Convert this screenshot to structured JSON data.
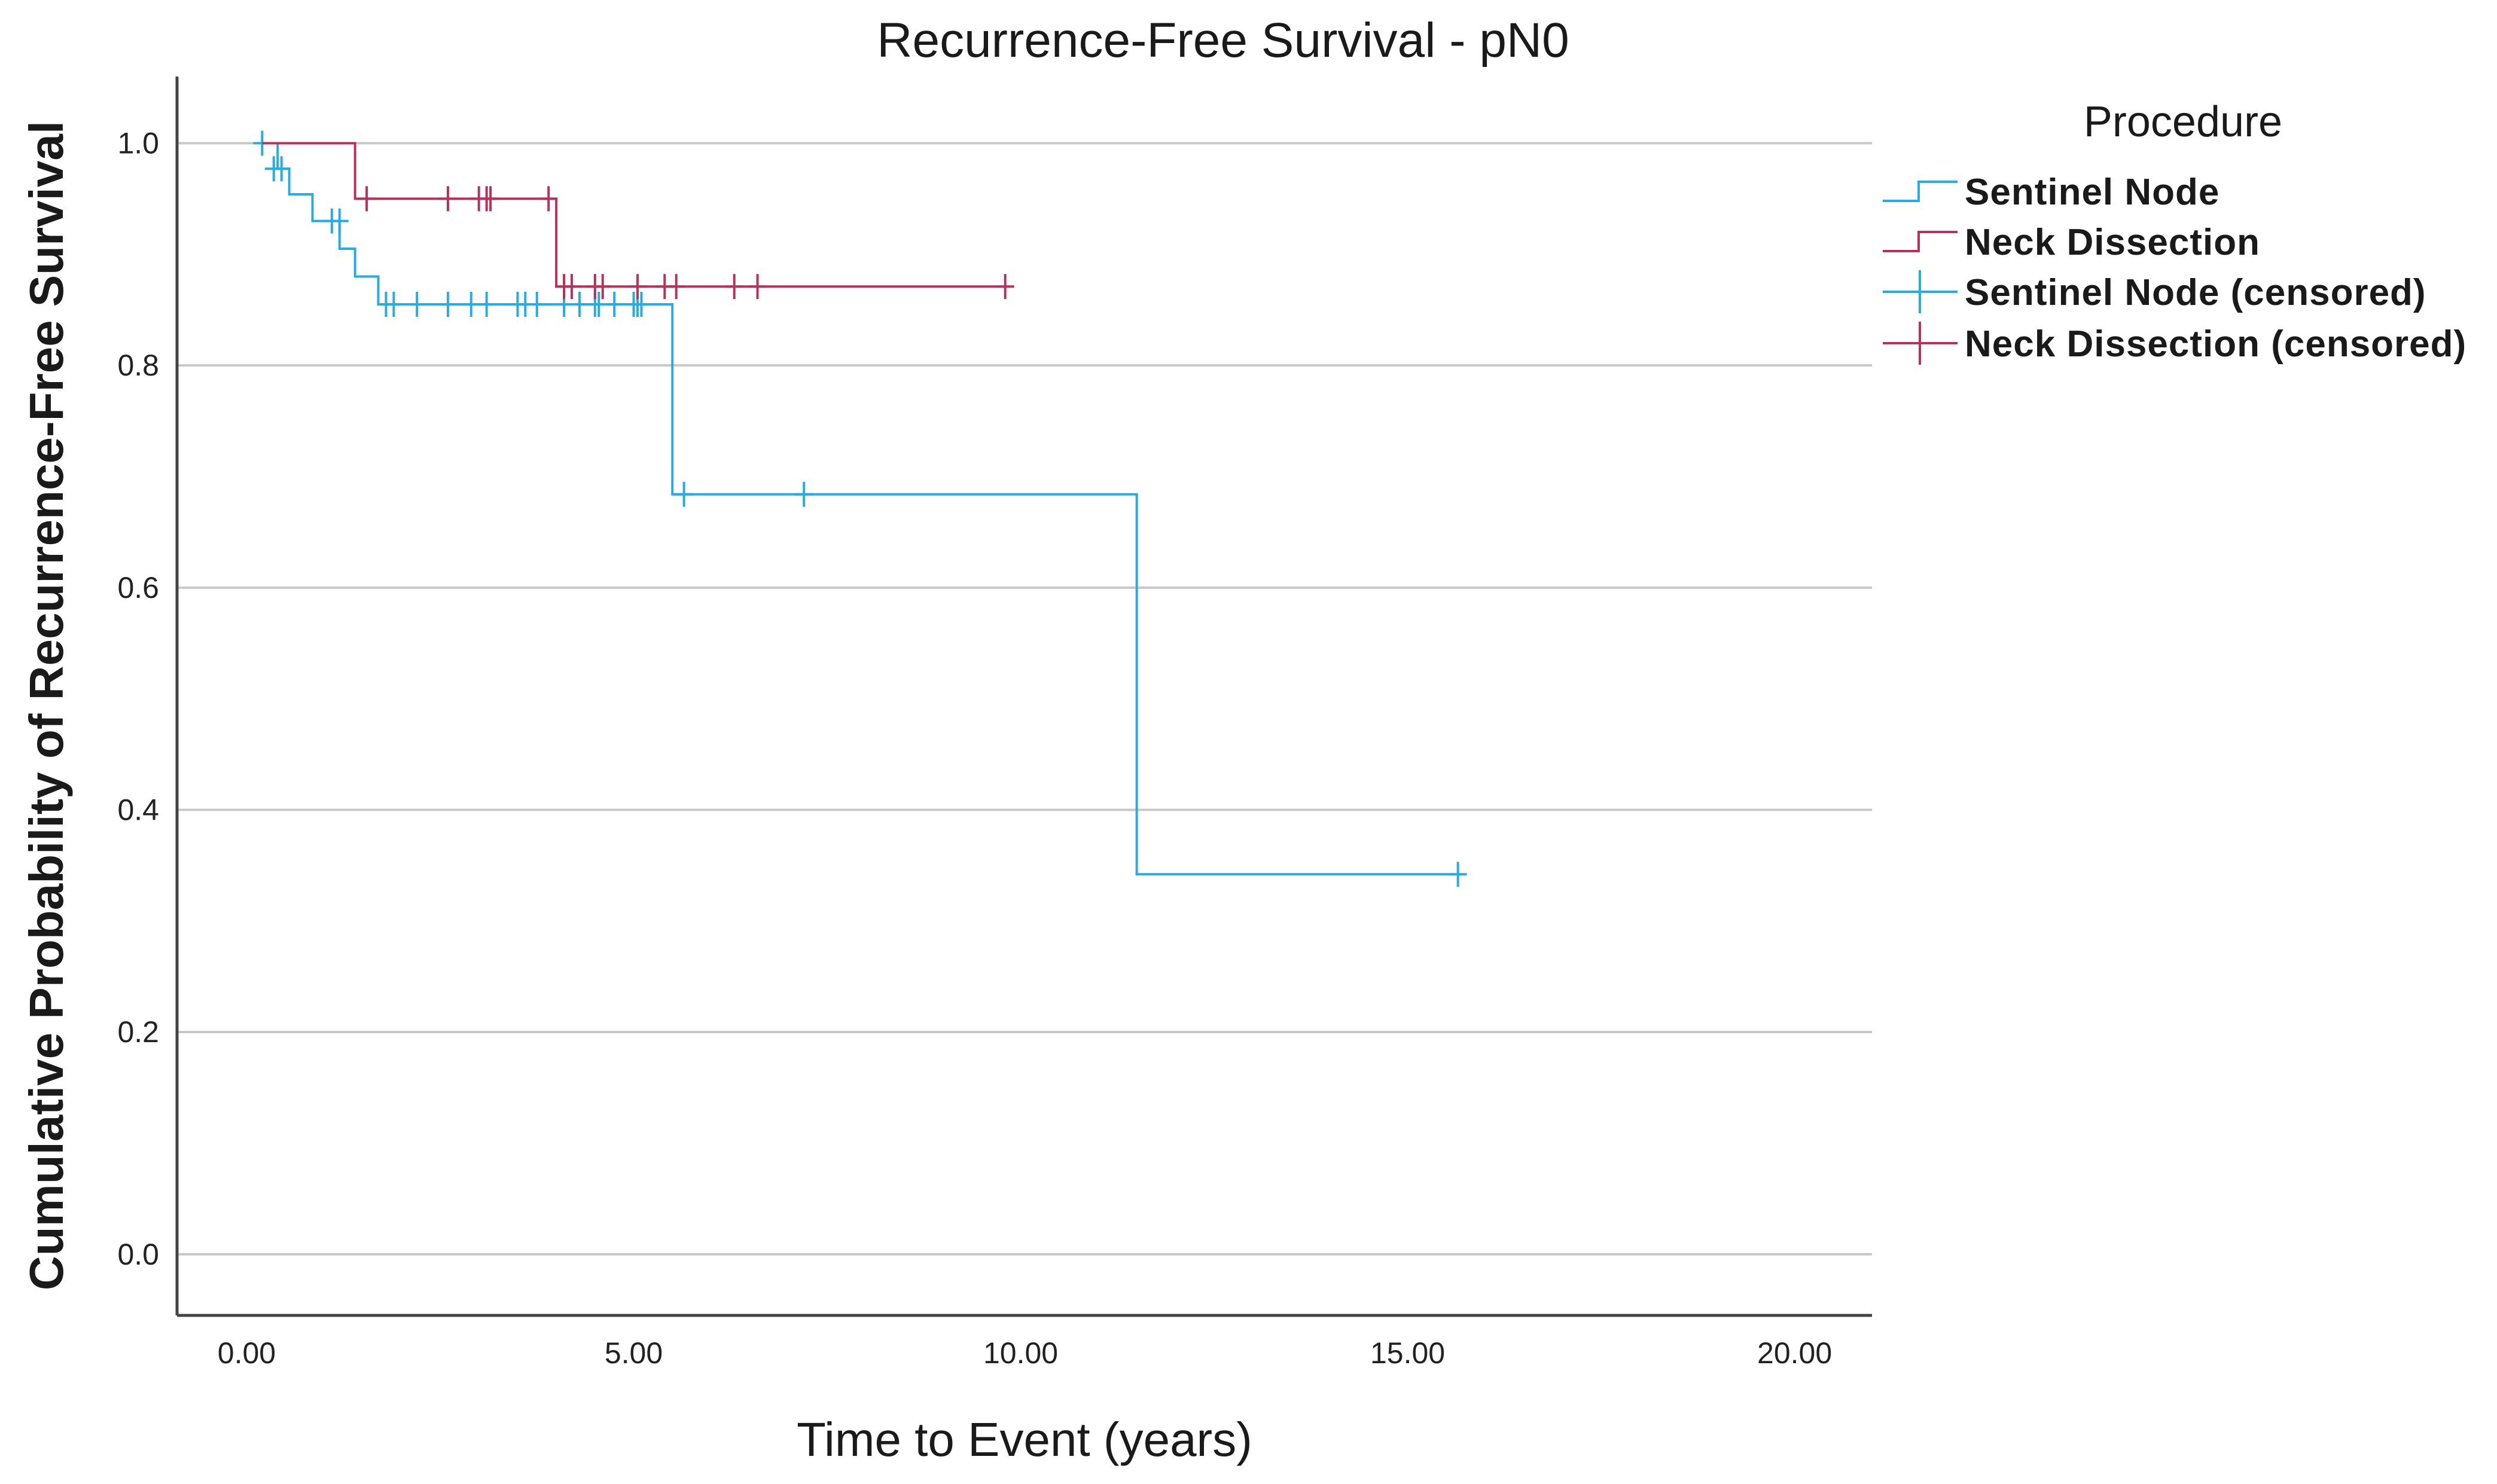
{
  "chart_data": {
    "type": "line",
    "subtype": "kaplan-meier-step",
    "title": "Recurrence-Free Survival - pN0",
    "xlabel": "Time to Event (years)",
    "ylabel": "Cumulative Probability of Recurrence-Free Survival",
    "xlim": [
      -0.9,
      21.0
    ],
    "ylim": [
      -0.055,
      1.06
    ],
    "x_ticks": [
      "0.00",
      "5.00",
      "10.00",
      "15.00",
      "20.00"
    ],
    "x_tick_values": [
      0,
      5,
      10,
      15,
      20
    ],
    "y_ticks": [
      "0.0",
      "0.2",
      "0.4",
      "0.6",
      "0.8",
      "1.0"
    ],
    "y_tick_values": [
      0.0,
      0.2,
      0.4,
      0.6,
      0.8,
      1.0
    ],
    "grid": "horizontal",
    "legend": {
      "title": "Procedure",
      "placement": "right",
      "entries": [
        {
          "label": "Sentinel Node",
          "kind": "step",
          "color": "#29abe2"
        },
        {
          "label": "Neck Dissection",
          "kind": "step",
          "color": "#b5335b"
        },
        {
          "label": "Sentinel Node (censored)",
          "kind": "censor",
          "color": "#29abe2"
        },
        {
          "label": "Neck Dissection (censored)",
          "kind": "censor",
          "color": "#b5335b"
        }
      ]
    },
    "series": [
      {
        "name": "Sentinel Node",
        "color": "#29abe2",
        "steps": [
          [
            0.2,
            1.0
          ],
          [
            0.4,
            0.977
          ],
          [
            0.55,
            0.954
          ],
          [
            0.85,
            0.93
          ],
          [
            1.2,
            0.905
          ],
          [
            1.4,
            0.88
          ],
          [
            1.7,
            0.855
          ],
          [
            5.5,
            0.684
          ],
          [
            11.5,
            0.342
          ]
        ],
        "end_x": 15.7,
        "censored": [
          [
            0.2,
            1.0
          ],
          [
            0.35,
            0.977
          ],
          [
            0.45,
            0.977
          ],
          [
            1.1,
            0.93
          ],
          [
            1.2,
            0.93
          ],
          [
            1.8,
            0.855
          ],
          [
            1.9,
            0.855
          ],
          [
            2.2,
            0.855
          ],
          [
            2.6,
            0.855
          ],
          [
            2.9,
            0.855
          ],
          [
            3.1,
            0.855
          ],
          [
            3.5,
            0.855
          ],
          [
            3.6,
            0.855
          ],
          [
            3.75,
            0.855
          ],
          [
            4.1,
            0.855
          ],
          [
            4.3,
            0.855
          ],
          [
            4.5,
            0.855
          ],
          [
            4.55,
            0.855
          ],
          [
            4.75,
            0.855
          ],
          [
            5.0,
            0.855
          ],
          [
            5.05,
            0.855
          ],
          [
            5.1,
            0.855
          ],
          [
            5.65,
            0.684
          ],
          [
            7.2,
            0.684
          ],
          [
            15.65,
            0.342
          ]
        ]
      },
      {
        "name": "Neck Dissection",
        "color": "#b5335b",
        "steps": [
          [
            0.2,
            1.0
          ],
          [
            1.4,
            0.95
          ],
          [
            4.0,
            0.871
          ]
        ],
        "end_x": 9.85,
        "censored": [
          [
            1.55,
            0.95
          ],
          [
            2.6,
            0.95
          ],
          [
            3.0,
            0.95
          ],
          [
            3.1,
            0.95
          ],
          [
            3.15,
            0.95
          ],
          [
            3.9,
            0.95
          ],
          [
            4.1,
            0.871
          ],
          [
            4.2,
            0.871
          ],
          [
            4.5,
            0.871
          ],
          [
            4.6,
            0.871
          ],
          [
            5.05,
            0.871
          ],
          [
            5.4,
            0.871
          ],
          [
            5.55,
            0.871
          ],
          [
            6.3,
            0.871
          ],
          [
            6.6,
            0.871
          ],
          [
            9.8,
            0.871
          ]
        ]
      }
    ]
  }
}
